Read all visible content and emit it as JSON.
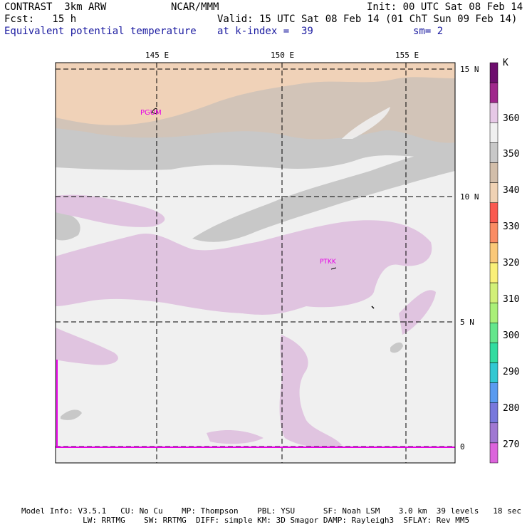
{
  "header": {
    "model": "CONTRAST  3km ARW",
    "org": "NCAR/MMM",
    "init": "Init: 00 UTC Sat 08 Feb 14",
    "fcst": "Fcst:   15 h",
    "valid": "Valid: 15 UTC Sat 08 Feb 14 (01 ChT Sun 09 Feb 14)",
    "field": "Equivalent potential temperature",
    "level": "at k-index =  39",
    "smooth": "sm= 2"
  },
  "axes": {
    "lon_labels": [
      "145 E",
      "150 E",
      "155 E"
    ],
    "lat_labels": [
      "15 N",
      "10 N",
      "5 N",
      "0"
    ]
  },
  "stations": [
    "PGUM",
    "PTKK"
  ],
  "colorbar": {
    "unit": "K",
    "labels": [
      "360",
      "350",
      "340",
      "330",
      "320",
      "310",
      "300",
      "290",
      "280",
      "270"
    ],
    "colors": [
      "#6e0e6e",
      "#a0288c",
      "#e6c8e6",
      "#f0f0f0",
      "#c8c8c8",
      "#d2beaa",
      "#f0d2b4",
      "#fa5a50",
      "#fa8c64",
      "#fac878",
      "#faf078",
      "#d2f078",
      "#aaf078",
      "#64e68c",
      "#32dca0",
      "#32c8d2",
      "#5a9bf0",
      "#7878dc",
      "#a078d2",
      "#dc64dc"
    ]
  },
  "footer": {
    "line1": "Model Info: V3.5.1   CU: No Cu    MP: Thompson    PBL: YSU      SF: Noah LSM    3.0 km  39 levels   18 sec",
    "line2": "             LW: RRTMG    SW: RRTMG  DIFF: simple KM: 3D Smagor DAMP: Rayleigh3  SFLAY: Rev MM5"
  }
}
